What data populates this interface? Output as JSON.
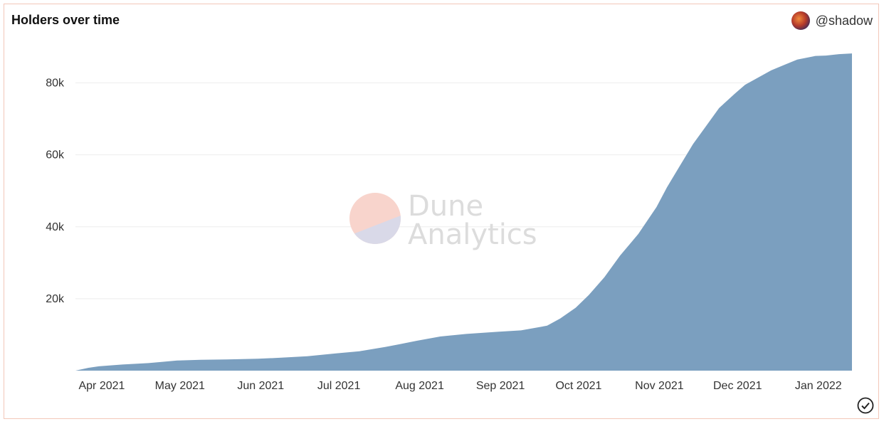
{
  "header": {
    "title": "Holders over time",
    "author": "@shadow",
    "avatar_icon": "avatar-icon"
  },
  "watermark": {
    "line1": "Dune",
    "line2": "Analytics"
  },
  "colors": {
    "area": "#7b9fbf",
    "grid": "#eeeeee",
    "border": "#f3c7b8"
  },
  "chart_data": {
    "type": "area",
    "title": "Holders over time",
    "xlabel": "",
    "ylabel": "",
    "ylim": [
      0,
      90000
    ],
    "yticks": [
      20000,
      40000,
      60000,
      80000
    ],
    "ytick_labels": [
      "20k",
      "40k",
      "60k",
      "80k"
    ],
    "xlim": [
      "2021-03-23",
      "2022-01-15"
    ],
    "xtick_dates": [
      "2021-04-01",
      "2021-05-01",
      "2021-06-01",
      "2021-07-01",
      "2021-08-01",
      "2021-09-01",
      "2021-10-01",
      "2021-11-01",
      "2021-12-01",
      "2022-01-01"
    ],
    "xtick_labels": [
      "Apr 2021",
      "May 2021",
      "Jun 2021",
      "Jul 2021",
      "Aug 2021",
      "Sep 2021",
      "Oct 2021",
      "Nov 2021",
      "Dec 2021",
      "Jan 2022"
    ],
    "grid": true,
    "series": [
      {
        "name": "Holders",
        "x": [
          "2021-03-23",
          "2021-03-28",
          "2021-04-01",
          "2021-04-10",
          "2021-04-20",
          "2021-05-01",
          "2021-05-10",
          "2021-05-20",
          "2021-06-01",
          "2021-06-10",
          "2021-06-20",
          "2021-07-01",
          "2021-07-10",
          "2021-07-20",
          "2021-07-25",
          "2021-08-01",
          "2021-08-10",
          "2021-08-20",
          "2021-09-01",
          "2021-09-10",
          "2021-09-20",
          "2021-09-25",
          "2021-10-01",
          "2021-10-06",
          "2021-10-12",
          "2021-10-18",
          "2021-10-25",
          "2021-11-01",
          "2021-11-05",
          "2021-11-10",
          "2021-11-15",
          "2021-11-20",
          "2021-11-25",
          "2021-12-01",
          "2021-12-05",
          "2021-12-10",
          "2021-12-15",
          "2021-12-20",
          "2021-12-25",
          "2022-01-01",
          "2022-01-05",
          "2022-01-10",
          "2022-01-15"
        ],
        "values": [
          0,
          800,
          1200,
          1700,
          2100,
          2800,
          3000,
          3100,
          3300,
          3600,
          4000,
          4800,
          5400,
          6600,
          7300,
          8300,
          9500,
          10200,
          10800,
          11200,
          12500,
          14500,
          17500,
          21000,
          26000,
          32000,
          38000,
          45500,
          51000,
          57000,
          63000,
          68000,
          73000,
          77000,
          79500,
          81500,
          83500,
          85000,
          86500,
          87500,
          87600,
          88000,
          88200
        ]
      }
    ]
  }
}
